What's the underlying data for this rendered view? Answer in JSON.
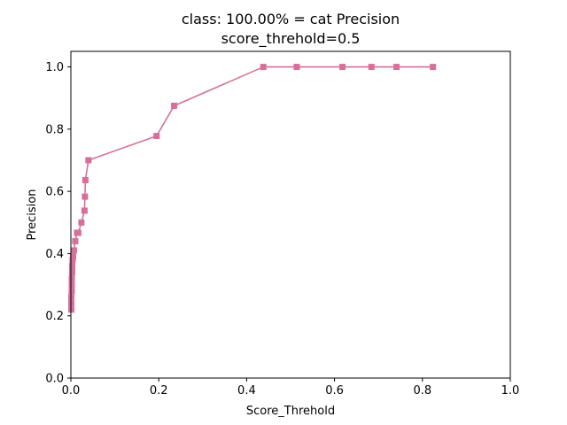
{
  "chart_data": {
    "type": "line",
    "title_lines": [
      "class: 100.00% = cat Precision",
      "score_threhold=0.5"
    ],
    "xlabel": "Score_Threhold",
    "ylabel": "Precision",
    "xlim": [
      0.0,
      1.0
    ],
    "ylim": [
      0.0,
      1.05
    ],
    "x_ticks": [
      0.0,
      0.2,
      0.4,
      0.6,
      0.8,
      1.0
    ],
    "x_tick_labels": [
      "0.0",
      "0.2",
      "0.4",
      "0.6",
      "0.8",
      "1.0"
    ],
    "y_ticks": [
      0.0,
      0.2,
      0.4,
      0.6,
      0.8,
      1.0
    ],
    "y_tick_labels": [
      "0.0",
      "0.2",
      "0.4",
      "0.6",
      "0.8",
      "1.0"
    ],
    "grid": false,
    "marker": "square",
    "color": "#d6709a",
    "series": [
      {
        "x": [
          0.001,
          0.001,
          0.001,
          0.002,
          0.002,
          0.002,
          0.003,
          0.003,
          0.004,
          0.005,
          0.007,
          0.01,
          0.014,
          0.017,
          0.024,
          0.031,
          0.032,
          0.033,
          0.04,
          0.195,
          0.235,
          0.438,
          0.514,
          0.618,
          0.684,
          0.741,
          0.824
        ],
        "y": [
          0.22,
          0.24,
          0.26,
          0.28,
          0.3,
          0.32,
          0.34,
          0.36,
          0.38,
          0.39,
          0.41,
          0.44,
          0.467,
          0.467,
          0.5,
          0.538,
          0.583,
          0.636,
          0.7,
          0.778,
          0.875,
          1.0,
          1.0,
          1.0,
          1.0,
          1.0,
          1.0
        ]
      }
    ]
  }
}
